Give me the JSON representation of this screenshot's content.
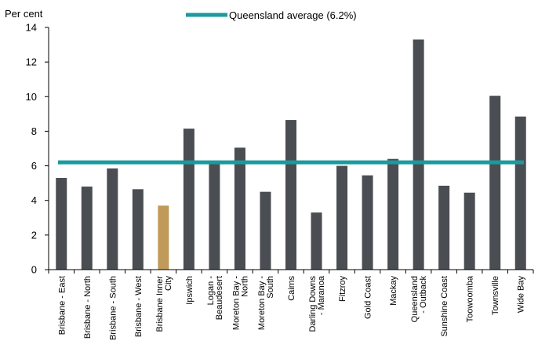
{
  "chart_data": {
    "type": "bar",
    "title": "",
    "xlabel": "",
    "ylabel": "Per cent",
    "ylim": [
      0,
      14
    ],
    "yticks": [
      0,
      2,
      4,
      6,
      8,
      10,
      12,
      14
    ],
    "grid": false,
    "legend_position": "top-center",
    "categories": [
      [
        "Brisbane - East"
      ],
      [
        "Brisbane - North"
      ],
      [
        "Brisbane - South"
      ],
      [
        "Brisbane - West"
      ],
      [
        "Brisbane Inner",
        "City"
      ],
      [
        "Ipswich"
      ],
      [
        "Logan -",
        "Beaudesert"
      ],
      [
        "Moreton Bay -",
        "North"
      ],
      [
        "Moreton Bay -",
        "South"
      ],
      [
        "Cairns"
      ],
      [
        "Darling Downs",
        "- Maranoa"
      ],
      [
        "Fitzroy"
      ],
      [
        "Gold Coast"
      ],
      [
        "Mackay"
      ],
      [
        "Queensland",
        "- Outback"
      ],
      [
        "Sunshine Coast"
      ],
      [
        "Toowoomba"
      ],
      [
        "Townsville"
      ],
      [
        "Wide Bay"
      ]
    ],
    "values": [
      5.3,
      4.8,
      5.85,
      4.65,
      3.7,
      8.15,
      6.3,
      7.05,
      4.5,
      8.65,
      3.3,
      6.0,
      5.45,
      6.4,
      13.3,
      4.85,
      4.45,
      10.05,
      8.85
    ],
    "highlight_index": 4,
    "reference_line": {
      "label": "Queensland average (6.2%)",
      "value": 6.2
    },
    "colors": {
      "bar": "#4a4d52",
      "highlight": "#c09a5b",
      "average": "#1a9a9e",
      "axis": "#000000"
    }
  }
}
